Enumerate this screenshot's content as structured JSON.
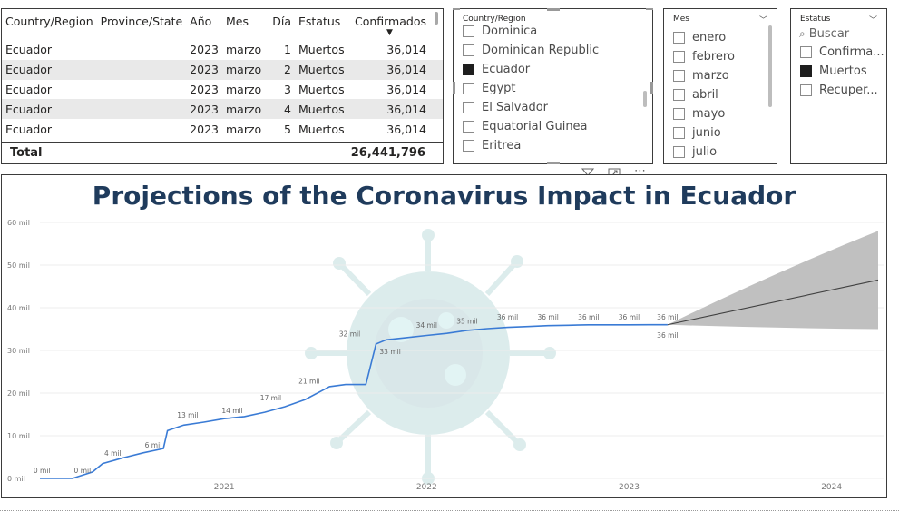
{
  "table": {
    "columns": [
      "Country/Region",
      "Province/State",
      "Año",
      "Mes",
      "Día",
      "Estatus",
      "Confirmados"
    ],
    "rows": [
      [
        "Ecuador",
        "",
        "2023",
        "marzo",
        "1",
        "Muertos",
        "36,014"
      ],
      [
        "Ecuador",
        "",
        "2023",
        "marzo",
        "2",
        "Muertos",
        "36,014"
      ],
      [
        "Ecuador",
        "",
        "2023",
        "marzo",
        "3",
        "Muertos",
        "36,014"
      ],
      [
        "Ecuador",
        "",
        "2023",
        "marzo",
        "4",
        "Muertos",
        "36,014"
      ],
      [
        "Ecuador",
        "",
        "2023",
        "marzo",
        "5",
        "Muertos",
        "36,014"
      ]
    ],
    "total_label": "Total",
    "total_value": "26,441,796"
  },
  "country_slicer": {
    "title": "Country/Region",
    "items": [
      {
        "label": "Dominica",
        "checked": false
      },
      {
        "label": "Dominican Republic",
        "checked": false
      },
      {
        "label": "Ecuador",
        "checked": true
      },
      {
        "label": "Egypt",
        "checked": false
      },
      {
        "label": "El Salvador",
        "checked": false
      },
      {
        "label": "Equatorial Guinea",
        "checked": false
      },
      {
        "label": "Eritrea",
        "checked": false
      }
    ]
  },
  "month_slicer": {
    "title": "Mes",
    "items": [
      {
        "label": "enero",
        "checked": false
      },
      {
        "label": "febrero",
        "checked": false
      },
      {
        "label": "marzo",
        "checked": false
      },
      {
        "label": "abril",
        "checked": false
      },
      {
        "label": "mayo",
        "checked": false
      },
      {
        "label": "junio",
        "checked": false
      },
      {
        "label": "julio",
        "checked": false
      }
    ]
  },
  "status_slicer": {
    "title": "Estatus",
    "search_placeholder": "Buscar",
    "items": [
      {
        "label": "Confirma...",
        "checked": false
      },
      {
        "label": "Muertos",
        "checked": true
      },
      {
        "label": "Recuper...",
        "checked": false
      }
    ]
  },
  "icons": {
    "filter": "filter-icon",
    "focus": "focus-mode-icon",
    "more": "more-options-icon",
    "search": "search-icon"
  },
  "chart_data": {
    "type": "line",
    "title": "Projections of the Coronavirus Impact in Ecuador",
    "xlabel": "",
    "ylabel": "",
    "x_ticks": [
      "2021",
      "2022",
      "2023",
      "2024"
    ],
    "x_range": [
      2020.09,
      2024.23
    ],
    "y_ticks": [
      "0 mil",
      "10 mil",
      "20 mil",
      "30 mil",
      "40 mil",
      "50 mil",
      "60 mil"
    ],
    "ylim": [
      0,
      60000
    ],
    "grid": true,
    "line_color": "#3a7bd5",
    "forecast_color": "#404040",
    "band_color": "#c0c0c0",
    "series": [
      {
        "x": [
          2020.09,
          2020.25,
          2020.35,
          2020.4,
          2020.5,
          2020.6,
          2020.7,
          2020.72,
          2020.8,
          2020.9,
          2021.0,
          2021.1,
          2021.2,
          2021.3,
          2021.4,
          2021.5,
          2021.52,
          2021.6,
          2021.7,
          2021.75,
          2021.8,
          2021.9,
          2022.0,
          2022.1,
          2022.2,
          2022.3,
          2022.4,
          2022.5,
          2022.6,
          2022.7,
          2022.8,
          2022.9,
          2023.0,
          2023.1,
          2023.19
        ],
        "y": [
          0,
          0,
          1500,
          3500,
          4800,
          6000,
          7000,
          11200,
          12500,
          13200,
          14000,
          14500,
          15500,
          16800,
          18500,
          21000,
          21500,
          22000,
          22000,
          31500,
          32500,
          33000,
          33500,
          34000,
          34700,
          35100,
          35400,
          35600,
          35800,
          35900,
          36000,
          36000,
          36000,
          36014,
          36014
        ]
      }
    ],
    "forecast": {
      "x": [
        2023.19,
        2024.23
      ],
      "y": [
        36014,
        46500
      ],
      "upper": [
        36014,
        58000
      ],
      "lower": [
        36014,
        35000
      ]
    },
    "point_labels": [
      {
        "x": 2020.1,
        "y": 0,
        "text": "0 mil"
      },
      {
        "x": 2020.3,
        "y": 0,
        "text": "0 mil"
      },
      {
        "x": 2020.45,
        "y": 4000,
        "text": "4 mil"
      },
      {
        "x": 2020.65,
        "y": 6000,
        "text": "6 mil"
      },
      {
        "x": 2020.82,
        "y": 13000,
        "text": "13 mil"
      },
      {
        "x": 2021.04,
        "y": 14000,
        "text": "14 mil"
      },
      {
        "x": 2021.23,
        "y": 17000,
        "text": "17 mil"
      },
      {
        "x": 2021.42,
        "y": 21000,
        "text": "21 mil"
      },
      {
        "x": 2021.62,
        "y": 32000,
        "text": "32 mil"
      },
      {
        "x": 2021.82,
        "y": 33000,
        "text": "33 mil"
      },
      {
        "x": 2022.0,
        "y": 34000,
        "text": "34 mil"
      },
      {
        "x": 2022.2,
        "y": 35000,
        "text": "35 mil"
      },
      {
        "x": 2022.4,
        "y": 36000,
        "text": "36 mil"
      },
      {
        "x": 2022.6,
        "y": 36000,
        "text": "36 mil"
      },
      {
        "x": 2022.8,
        "y": 36000,
        "text": "36 mil"
      },
      {
        "x": 2023.0,
        "y": 36000,
        "text": "36 mil"
      },
      {
        "x": 2023.19,
        "y": 36000,
        "text": "36 mil"
      },
      {
        "x": 2023.19,
        "y": 36000,
        "text": "36 mil"
      }
    ]
  }
}
